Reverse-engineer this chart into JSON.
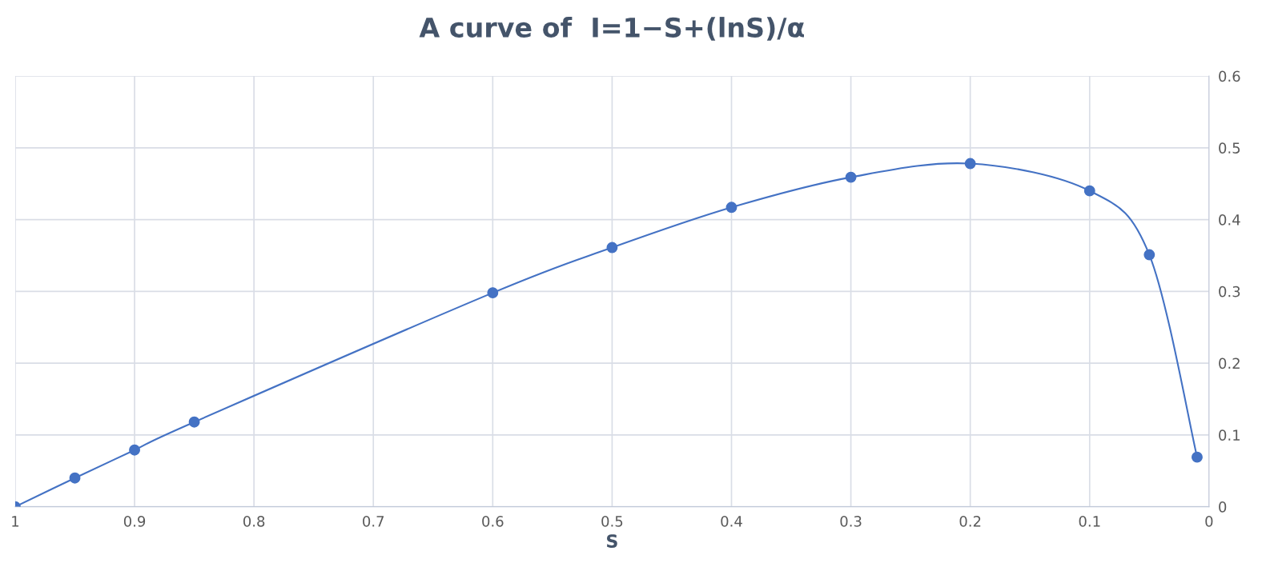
{
  "chart_data": {
    "type": "line",
    "title": "A curve of  I=1−S+(lnS)/α",
    "xlabel": "S",
    "x": [
      1,
      0.95,
      0.9,
      0.85,
      0.6,
      0.5,
      0.4,
      0.3,
      0.2,
      0.1,
      0.05,
      0.01
    ],
    "series": [
      {
        "color": "#4472c4",
        "values": [
          0,
          0.04,
          0.079,
          0.118,
          0.298,
          0.361,
          0.417,
          0.459,
          0.478,
          0.44,
          0.351,
          0.069
        ]
      }
    ],
    "xlim": [
      1,
      0
    ],
    "xticks": [
      1,
      0.9,
      0.8,
      0.7,
      0.6,
      0.5,
      0.4,
      0.3,
      0.2,
      0.1,
      0
    ],
    "ylim": [
      0,
      0.6
    ],
    "yticks": [
      0,
      0.1,
      0.2,
      0.3,
      0.4,
      0.5,
      0.6
    ],
    "grid": true,
    "marker": "circle",
    "line_style": "solid"
  }
}
